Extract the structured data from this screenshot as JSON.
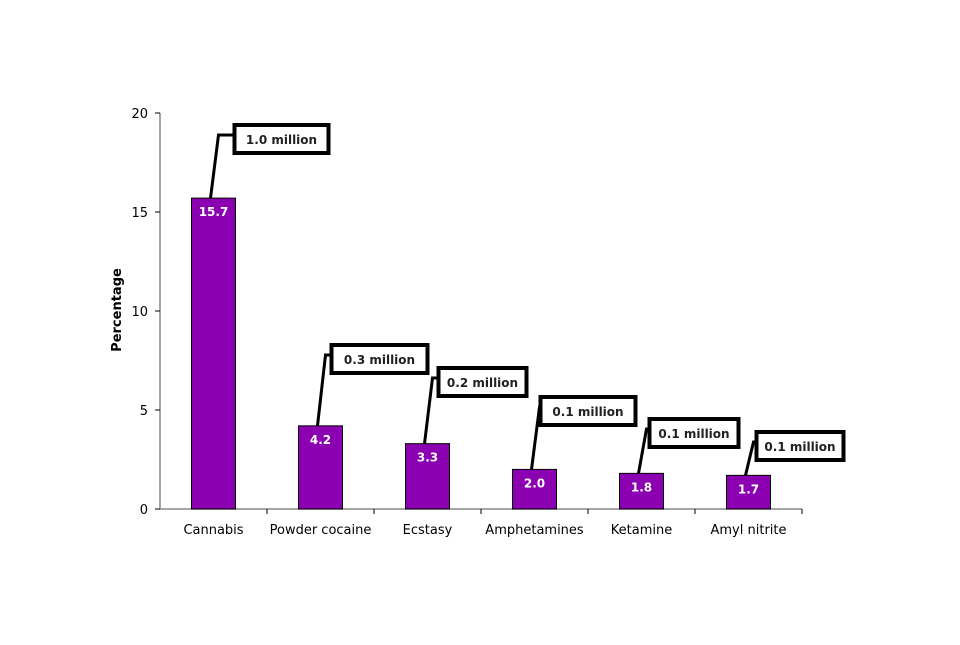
{
  "chart_data": {
    "type": "bar",
    "title": "",
    "xlabel": "",
    "ylabel": "Percentage",
    "ylim": [
      0,
      20
    ],
    "yticks": [
      0,
      5,
      10,
      15,
      20
    ],
    "grid": false,
    "categories": [
      "Cannabis",
      "Powder cocaine",
      "Ecstasy",
      "Amphetamines",
      "Ketamine",
      "Amyl nitrite"
    ],
    "values": [
      15.7,
      4.2,
      3.3,
      2.0,
      1.8,
      1.7
    ],
    "data_labels": [
      "15.7",
      "4.2",
      "3.3",
      "2.0",
      "1.8",
      "1.7"
    ],
    "annotations": [
      "1.0 million",
      "0.3 million",
      "0.2 million",
      "0.1 million",
      "0.1 million",
      "0.1 million"
    ],
    "bar_color": "#8B00B0"
  }
}
